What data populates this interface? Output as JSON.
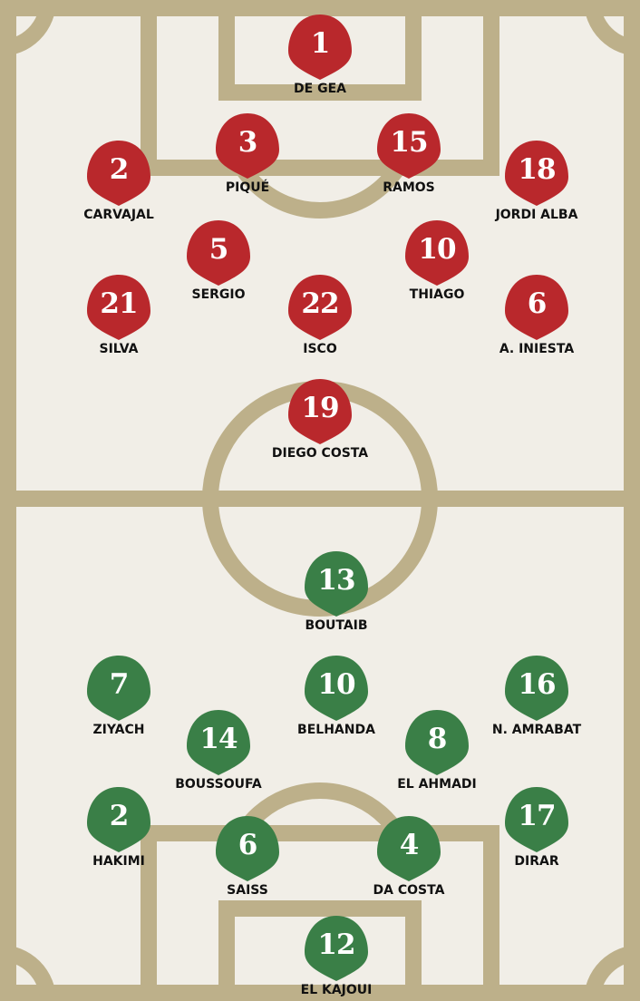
{
  "colors": {
    "pitch_bg": "#f1eee7",
    "lines": "#bdb08a",
    "spain": "#b9282c",
    "morocco": "#3a7f47"
  },
  "teams": [
    {
      "side": "top",
      "color": "#b9282c",
      "players": [
        {
          "number": "1",
          "name": "DE GEA"
        },
        {
          "number": "3",
          "name": "PIQUÉ"
        },
        {
          "number": "15",
          "name": "RAMOS"
        },
        {
          "number": "2",
          "name": "CARVAJAL"
        },
        {
          "number": "18",
          "name": "JORDI ALBA"
        },
        {
          "number": "5",
          "name": "SERGIO"
        },
        {
          "number": "10",
          "name": "THIAGO"
        },
        {
          "number": "21",
          "name": "SILVA"
        },
        {
          "number": "22",
          "name": "ISCO"
        },
        {
          "number": "6",
          "name": "A. INIESTA"
        },
        {
          "number": "19",
          "name": "DIEGO COSTA"
        }
      ]
    },
    {
      "side": "bottom",
      "color": "#3a7f47",
      "players": [
        {
          "number": "13",
          "name": "BOUTAIB"
        },
        {
          "number": "7",
          "name": "ZIYACH"
        },
        {
          "number": "10",
          "name": "BELHANDA"
        },
        {
          "number": "16",
          "name": "N. AMRABAT"
        },
        {
          "number": "14",
          "name": "BOUSSOUFA"
        },
        {
          "number": "8",
          "name": "EL AHMADI"
        },
        {
          "number": "2",
          "name": "HAKIMI"
        },
        {
          "number": "6",
          "name": "SAISS"
        },
        {
          "number": "4",
          "name": "DA COSTA"
        },
        {
          "number": "17",
          "name": "DIRAR"
        },
        {
          "number": "12",
          "name": "EL KAJOUI"
        }
      ]
    }
  ]
}
